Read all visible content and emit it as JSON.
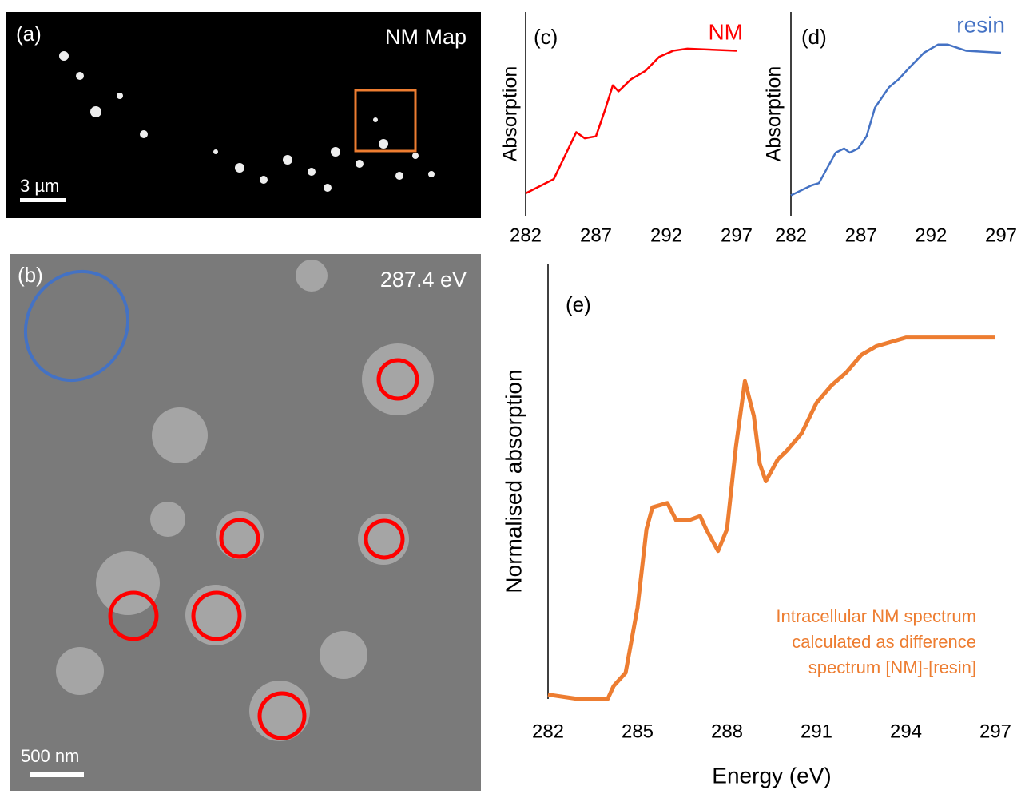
{
  "images": {
    "a": {
      "label": "(a)",
      "title": "NM Map",
      "scale": "3 µm"
    },
    "b": {
      "label": "(b)",
      "title": "287.4 eV",
      "scale": "500 nm"
    }
  },
  "chart_data": [
    {
      "type": "line",
      "title": "(c)",
      "y_label": "Absorption",
      "x": [
        282,
        284,
        285.6,
        286.2,
        287,
        287.6,
        288.2,
        288.6,
        289.5,
        290.5,
        291.5,
        292.5,
        293.5,
        297
      ],
      "series": [
        {
          "name": "NM",
          "color": "#ff0000",
          "values": [
            0.11,
            0.18,
            0.41,
            0.38,
            0.39,
            0.51,
            0.64,
            0.61,
            0.67,
            0.71,
            0.78,
            0.81,
            0.82,
            0.81
          ]
        }
      ],
      "xlim": [
        282,
        297
      ],
      "ylim": [
        0,
        1
      ],
      "xticks": [
        282,
        287,
        292,
        297
      ]
    },
    {
      "type": "line",
      "title": "(d)",
      "y_label": "Absorption",
      "x": [
        282,
        283.5,
        284,
        285.2,
        285.8,
        286.2,
        286.8,
        287.4,
        288,
        289,
        289.7,
        290.5,
        291.5,
        292.5,
        293.2,
        294.5,
        297
      ],
      "series": [
        {
          "name": "resin",
          "color": "#4472c4",
          "values": [
            0.1,
            0.15,
            0.16,
            0.31,
            0.33,
            0.31,
            0.33,
            0.39,
            0.53,
            0.63,
            0.67,
            0.73,
            0.8,
            0.84,
            0.84,
            0.81,
            0.8
          ]
        }
      ],
      "xlim": [
        282,
        297
      ],
      "ylim": [
        0,
        1
      ],
      "xticks": [
        282,
        287,
        292,
        297
      ]
    },
    {
      "type": "line",
      "title": "(e)",
      "y_label": "Normalised absorption",
      "x_label": "Energy (eV)",
      "annotation": [
        "Intracellular NM spectrum",
        "calculated as difference",
        "spectrum [NM]-[resin]"
      ],
      "x": [
        282,
        283,
        284,
        284.2,
        284.6,
        285,
        285.3,
        285.5,
        286,
        286.3,
        286.7,
        287.1,
        287.3,
        287.7,
        288,
        288.3,
        288.6,
        288.9,
        289.1,
        289.3,
        289.7,
        290,
        290.5,
        291,
        291.5,
        292,
        292.5,
        293,
        294,
        297
      ],
      "series": [
        {
          "color": "#ed7d31",
          "values": [
            0.01,
            0.0,
            0.0,
            0.03,
            0.06,
            0.21,
            0.39,
            0.44,
            0.45,
            0.41,
            0.41,
            0.42,
            0.39,
            0.34,
            0.39,
            0.58,
            0.73,
            0.65,
            0.54,
            0.5,
            0.55,
            0.57,
            0.61,
            0.68,
            0.72,
            0.75,
            0.79,
            0.81,
            0.83,
            0.83
          ]
        }
      ],
      "xlim": [
        282,
        297
      ],
      "ylim": [
        0,
        1
      ],
      "xticks": [
        282,
        285,
        288,
        291,
        294,
        297
      ]
    }
  ]
}
